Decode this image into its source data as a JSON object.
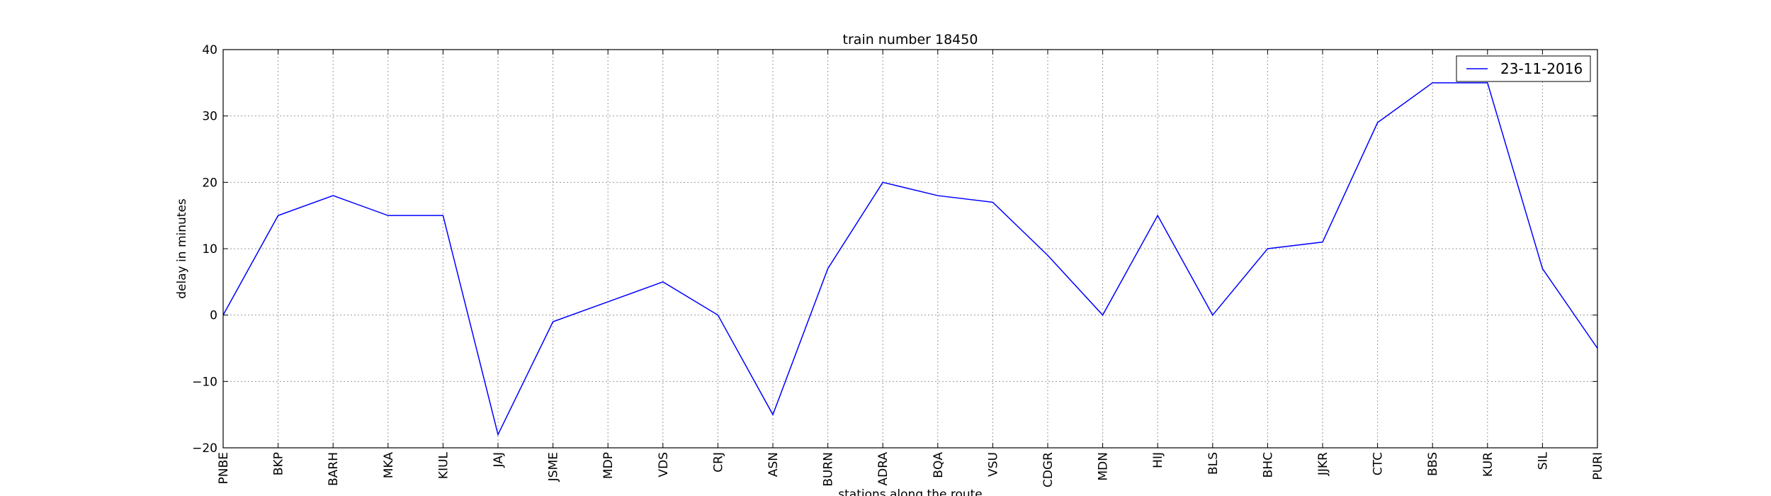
{
  "chart_data": {
    "type": "line",
    "title": "train number 18450",
    "xlabel": "stations along the route",
    "ylabel": "delay in minutes",
    "categories": [
      "PNBE",
      "BKP",
      "BARH",
      "MKA",
      "KIUL",
      "JAJ",
      "JSME",
      "MDP",
      "VDS",
      "CRJ",
      "ASN",
      "BURN",
      "ADRA",
      "BQA",
      "VSU",
      "CDGR",
      "MDN",
      "HIJ",
      "BLS",
      "BHC",
      "JJKR",
      "CTC",
      "BBS",
      "KUR",
      "SIL",
      "PURI"
    ],
    "series": [
      {
        "name": "23-11-2016",
        "color": "#0000ff",
        "values": [
          0,
          15,
          18,
          15,
          15,
          -18,
          -1,
          2,
          5,
          0,
          -15,
          7,
          20,
          18,
          17,
          9,
          0,
          15,
          0,
          10,
          11,
          29,
          35,
          35,
          7,
          -5
        ]
      }
    ],
    "ylim": [
      -20,
      40
    ],
    "yticks": [
      -20,
      -10,
      0,
      10,
      20,
      30,
      40
    ],
    "ytick_labels": [
      "−20",
      "−10",
      "0",
      "10",
      "20",
      "30",
      "40"
    ],
    "grid": true,
    "legend_position": "upper right"
  }
}
